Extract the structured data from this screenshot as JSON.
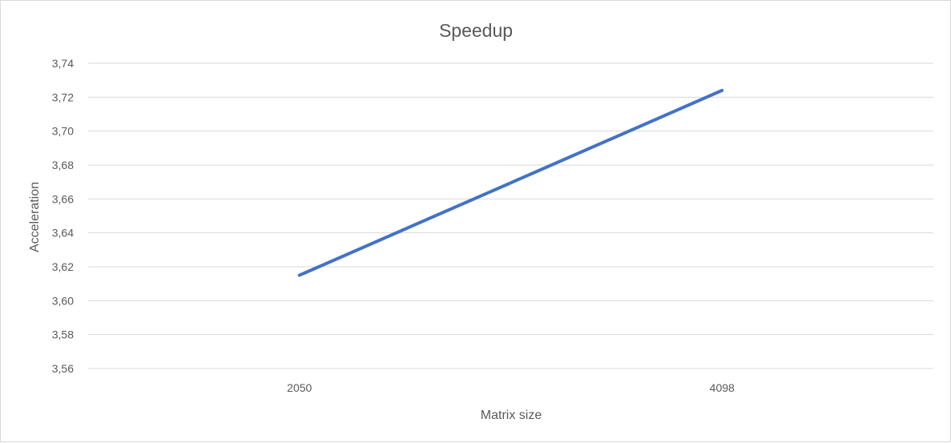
{
  "chart_data": {
    "type": "line",
    "title": "Speedup",
    "xlabel": "Matrix size",
    "ylabel": "Acceleration",
    "categories": [
      "2050",
      "4098"
    ],
    "series": [
      {
        "values": [
          3.615,
          3.724
        ]
      }
    ],
    "ylim": [
      3.56,
      3.74
    ],
    "yticks": [
      "3,56",
      "3,58",
      "3,60",
      "3,62",
      "3,64",
      "3,66",
      "3,68",
      "3,70",
      "3,72",
      "3,74"
    ],
    "ytick_values": [
      3.56,
      3.58,
      3.6,
      3.62,
      3.64,
      3.66,
      3.68,
      3.7,
      3.72,
      3.74
    ],
    "grid": true,
    "legend": "none",
    "colors": {
      "line": "#4472C4",
      "grid": "#d9d9d9",
      "text": "#595959"
    }
  }
}
